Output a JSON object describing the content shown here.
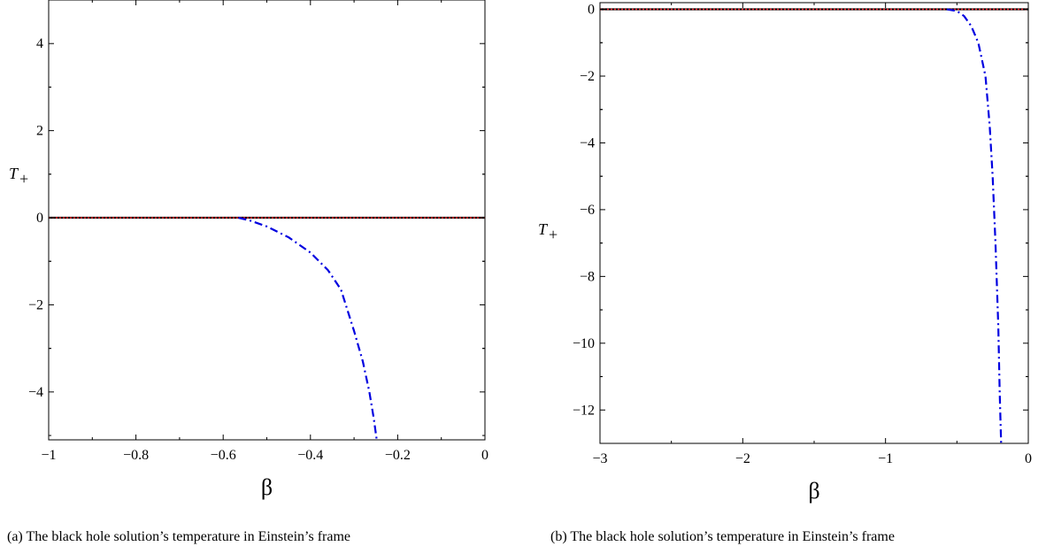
{
  "chart_data": [
    {
      "type": "line",
      "caption": "(a) The black hole solution’s temperature in Einstein’s frame",
      "xlabel": "β",
      "ylabel": "T",
      "ylabel_subscript": "+",
      "xlim": [
        -1,
        0
      ],
      "ylim": [
        -5.1,
        5.0
      ],
      "xticks": [
        -1,
        -0.8,
        -0.6,
        -0.4,
        -0.2,
        0
      ],
      "xtick_labels": [
        "−1",
        "−0.8",
        "−0.6",
        "−0.4",
        "−0.2",
        "0"
      ],
      "yticks": [
        4,
        2,
        0,
        -2,
        -4
      ],
      "ytick_labels": [
        "4",
        "2",
        "0",
        "−2",
        "−4"
      ],
      "grid": false,
      "series": [
        {
          "color": "#000000",
          "style": "solid",
          "x": [
            -1,
            0
          ],
          "y": [
            0,
            0
          ]
        },
        {
          "color": "#e8202a",
          "style": "dotted",
          "x": [
            -1,
            0
          ],
          "y": [
            0,
            0
          ]
        },
        {
          "color": "#0000e0",
          "style": "dashdot",
          "x": [
            -0.565,
            -0.54,
            -0.5,
            -0.45,
            -0.4,
            -0.36,
            -0.33,
            -0.3,
            -0.28,
            -0.265,
            -0.255,
            -0.248
          ],
          "y": [
            0,
            -0.06,
            -0.2,
            -0.45,
            -0.8,
            -1.2,
            -1.65,
            -2.6,
            -3.3,
            -4.0,
            -4.6,
            -5.1
          ]
        }
      ]
    },
    {
      "type": "line",
      "caption": "(b) The black hole solution’s temperature in Einstein’s frame",
      "xlabel": "β",
      "ylabel": "T",
      "ylabel_subscript": "+",
      "xlim": [
        -3,
        0
      ],
      "ylim": [
        -13,
        0.2
      ],
      "xticks": [
        -3,
        -2,
        -1,
        0
      ],
      "xtick_labels": [
        "−3",
        "−2",
        "−1",
        "0"
      ],
      "yticks": [
        0,
        -2,
        -4,
        -6,
        -8,
        -10,
        -12
      ],
      "ytick_labels": [
        "0",
        "−2",
        "−4",
        "−6",
        "−8",
        "−10",
        "−12"
      ],
      "grid": false,
      "series": [
        {
          "color": "#000000",
          "style": "solid",
          "x": [
            -3,
            0
          ],
          "y": [
            0,
            0
          ]
        },
        {
          "color": "#e8202a",
          "style": "dotted",
          "x": [
            -3,
            0
          ],
          "y": [
            0,
            0
          ]
        },
        {
          "color": "#0000e0",
          "style": "dashdot",
          "x": [
            -0.57,
            -0.5,
            -0.45,
            -0.4,
            -0.35,
            -0.3,
            -0.27,
            -0.25,
            -0.23,
            -0.21,
            -0.2,
            -0.19
          ],
          "y": [
            0,
            -0.05,
            -0.2,
            -0.5,
            -1.0,
            -2.0,
            -3.5,
            -5.0,
            -7.0,
            -9.5,
            -11.5,
            -13
          ]
        }
      ]
    }
  ]
}
